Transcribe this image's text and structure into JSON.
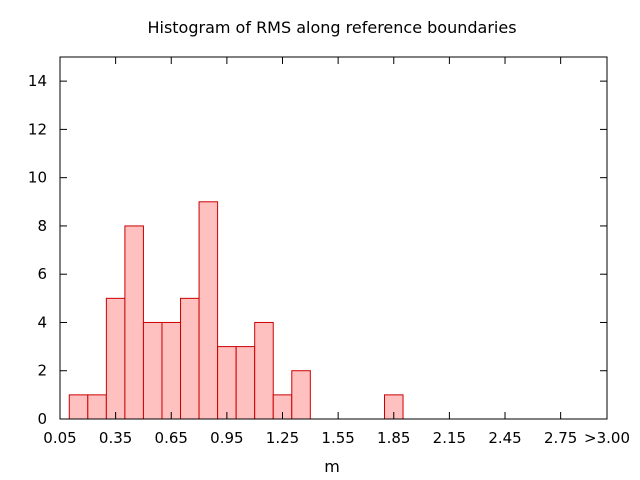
{
  "chart_data": {
    "type": "bar",
    "title": "Histogram of RMS along reference boundaries",
    "xlabel": "m",
    "ylabel": "",
    "xlim": [
      0.05,
      3.0
    ],
    "ylim": [
      0,
      15
    ],
    "bin_width": 0.1,
    "x_ticks": [
      {
        "value": 0.05,
        "label": "0.05"
      },
      {
        "value": 0.35,
        "label": "0.35"
      },
      {
        "value": 0.65,
        "label": "0.65"
      },
      {
        "value": 0.95,
        "label": "0.95"
      },
      {
        "value": 1.25,
        "label": "1.25"
      },
      {
        "value": 1.55,
        "label": "1.55"
      },
      {
        "value": 1.85,
        "label": "1.85"
      },
      {
        "value": 2.15,
        "label": "2.15"
      },
      {
        "value": 2.45,
        "label": "2.45"
      },
      {
        "value": 2.75,
        "label": "2.75"
      },
      {
        "value": 3.0,
        "label": ">3.00"
      }
    ],
    "y_ticks": [
      0,
      2,
      4,
      6,
      8,
      10,
      12,
      14
    ],
    "bins": [
      {
        "x": 0.15,
        "count": 1
      },
      {
        "x": 0.25,
        "count": 1
      },
      {
        "x": 0.35,
        "count": 5
      },
      {
        "x": 0.45,
        "count": 8
      },
      {
        "x": 0.55,
        "count": 4
      },
      {
        "x": 0.65,
        "count": 4
      },
      {
        "x": 0.75,
        "count": 5
      },
      {
        "x": 0.85,
        "count": 9
      },
      {
        "x": 0.95,
        "count": 3
      },
      {
        "x": 1.05,
        "count": 3
      },
      {
        "x": 1.15,
        "count": 4
      },
      {
        "x": 1.25,
        "count": 1
      },
      {
        "x": 1.35,
        "count": 2
      },
      {
        "x": 1.85,
        "count": 1
      }
    ],
    "bar_fill": "#ffc0c0",
    "bar_stroke": "#cc0000",
    "axis_color": "#000000",
    "grid": false,
    "legend": "none"
  }
}
